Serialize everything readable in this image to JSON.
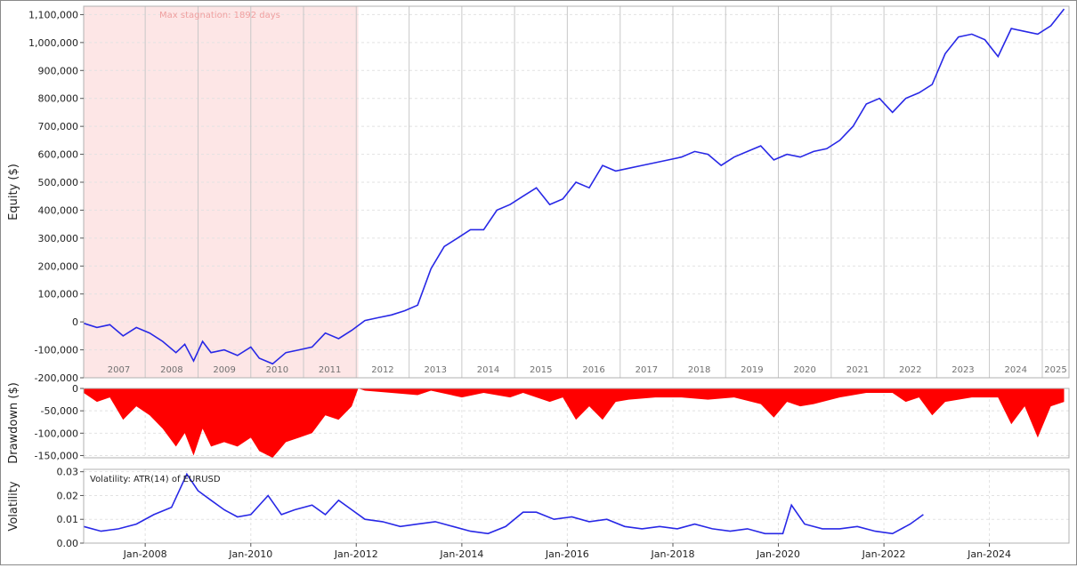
{
  "chart_data": [
    {
      "id": "equity",
      "type": "line",
      "ylabel": "Equity ($)",
      "ylim": [
        -200000,
        1130000
      ],
      "yticks": [
        -200000,
        -100000,
        0,
        100000,
        200000,
        300000,
        400000,
        500000,
        600000,
        700000,
        800000,
        900000,
        1000000,
        1100000
      ],
      "ytick_labels": [
        "-200,000",
        "-100,000",
        "0",
        "100,000",
        "200,000",
        "300,000",
        "400,000",
        "500,000",
        "600,000",
        "700,000",
        "800,000",
        "900,000",
        "1,000,000",
        "1,100,000"
      ],
      "grid": true,
      "year_labels": [
        "2007",
        "2008",
        "2009",
        "2010",
        "2011",
        "2012",
        "2013",
        "2014",
        "2015",
        "2016",
        "2017",
        "2018",
        "2019",
        "2020",
        "2021",
        "2022",
        "2023",
        "2024",
        "2025"
      ],
      "annotation": "Max stagnation: 1892 days",
      "stagnation_range": [
        "2006-11-01",
        "2012-01-15"
      ],
      "line_color": "#2828e6",
      "shade_color": "#fde6e6",
      "series": [
        {
          "x": [
            "2006-11-01",
            "2007-02-01",
            "2007-05-01",
            "2007-08-01",
            "2007-11-01",
            "2008-02-01",
            "2008-05-01",
            "2008-08-01",
            "2008-10-01",
            "2008-12-01",
            "2009-02-01",
            "2009-04-01",
            "2009-07-01",
            "2009-10-01",
            "2010-01-01",
            "2010-03-01",
            "2010-06-01",
            "2010-09-01",
            "2010-12-01",
            "2011-03-01",
            "2011-06-01",
            "2011-09-01",
            "2011-12-01",
            "2012-03-01",
            "2012-06-01",
            "2012-09-01",
            "2012-12-01",
            "2013-03-01",
            "2013-06-01",
            "2013-09-01",
            "2013-12-01",
            "2014-03-01",
            "2014-06-01",
            "2014-09-01",
            "2014-12-01",
            "2015-03-01",
            "2015-06-01",
            "2015-09-01",
            "2015-12-01",
            "2016-03-01",
            "2016-06-01",
            "2016-09-01",
            "2016-12-01",
            "2017-03-01",
            "2017-06-01",
            "2017-09-01",
            "2017-12-01",
            "2018-03-01",
            "2018-06-01",
            "2018-09-01",
            "2018-12-01",
            "2019-03-01",
            "2019-06-01",
            "2019-09-01",
            "2019-12-01",
            "2020-03-01",
            "2020-06-01",
            "2020-09-01",
            "2020-12-01",
            "2021-03-01",
            "2021-06-01",
            "2021-09-01",
            "2021-12-01",
            "2022-03-01",
            "2022-06-01",
            "2022-09-01",
            "2022-12-01",
            "2023-03-01",
            "2023-06-01",
            "2023-09-01",
            "2023-12-01",
            "2024-03-01",
            "2024-06-01",
            "2024-09-01",
            "2024-12-01",
            "2025-03-01",
            "2025-06-01"
          ],
          "y": [
            -5000,
            -20000,
            -10000,
            -50000,
            -20000,
            -40000,
            -70000,
            -110000,
            -80000,
            -140000,
            -70000,
            -110000,
            -100000,
            -120000,
            -90000,
            -130000,
            -150000,
            -110000,
            -100000,
            -90000,
            -40000,
            -60000,
            -30000,
            5000,
            15000,
            25000,
            40000,
            60000,
            190000,
            270000,
            300000,
            330000,
            330000,
            400000,
            420000,
            450000,
            480000,
            420000,
            440000,
            500000,
            480000,
            560000,
            540000,
            550000,
            560000,
            570000,
            580000,
            590000,
            610000,
            600000,
            560000,
            590000,
            610000,
            630000,
            580000,
            600000,
            590000,
            610000,
            620000,
            650000,
            700000,
            780000,
            800000,
            750000,
            800000,
            820000,
            850000,
            960000,
            1020000,
            1030000,
            1010000,
            950000,
            1050000,
            1040000,
            1030000,
            1060000,
            1120000
          ]
        }
      ]
    },
    {
      "id": "drawdown",
      "type": "area",
      "ylabel": "Drawdown ($)",
      "ylim": [
        -155000,
        0
      ],
      "yticks": [
        0,
        -50000,
        -100000,
        -150000
      ],
      "ytick_labels": [
        "0",
        "-50,000",
        "-100,000",
        "-150,000"
      ],
      "grid": true,
      "fill_color": "#ff0000",
      "series": [
        {
          "x": [
            "2006-11-01",
            "2007-02-01",
            "2007-05-01",
            "2007-08-01",
            "2007-11-01",
            "2008-02-01",
            "2008-05-01",
            "2008-08-01",
            "2008-10-01",
            "2008-12-01",
            "2009-02-01",
            "2009-04-01",
            "2009-07-01",
            "2009-10-01",
            "2010-01-01",
            "2010-03-01",
            "2010-06-01",
            "2010-09-01",
            "2010-12-01",
            "2011-03-01",
            "2011-06-01",
            "2011-09-01",
            "2011-12-01",
            "2012-01-15",
            "2012-03-01",
            "2012-09-01",
            "2013-03-01",
            "2013-06-01",
            "2014-01-01",
            "2014-06-01",
            "2014-12-01",
            "2015-03-01",
            "2015-09-01",
            "2015-12-01",
            "2016-03-01",
            "2016-06-01",
            "2016-09-01",
            "2016-12-01",
            "2017-03-01",
            "2017-09-01",
            "2018-03-01",
            "2018-09-01",
            "2019-03-01",
            "2019-09-01",
            "2019-12-01",
            "2020-03-01",
            "2020-06-01",
            "2020-09-01",
            "2021-03-01",
            "2021-09-01",
            "2022-03-01",
            "2022-06-01",
            "2022-09-01",
            "2022-12-01",
            "2023-03-01",
            "2023-09-01",
            "2024-03-01",
            "2024-06-01",
            "2024-09-01",
            "2024-12-01",
            "2025-03-01",
            "2025-06-01"
          ],
          "y": [
            -10000,
            -30000,
            -20000,
            -70000,
            -40000,
            -60000,
            -90000,
            -130000,
            -100000,
            -150000,
            -90000,
            -130000,
            -120000,
            -130000,
            -110000,
            -140000,
            -155000,
            -120000,
            -110000,
            -100000,
            -60000,
            -70000,
            -40000,
            0,
            -5000,
            -10000,
            -15000,
            -5000,
            -20000,
            -10000,
            -20000,
            -10000,
            -30000,
            -20000,
            -70000,
            -40000,
            -70000,
            -30000,
            -25000,
            -20000,
            -20000,
            -25000,
            -20000,
            -35000,
            -65000,
            -30000,
            -40000,
            -35000,
            -20000,
            -10000,
            -10000,
            -30000,
            -20000,
            -60000,
            -30000,
            -20000,
            -20000,
            -80000,
            -40000,
            -110000,
            -40000,
            -30000
          ]
        }
      ]
    },
    {
      "id": "volatility",
      "type": "line",
      "ylabel": "Volatility",
      "ylim": [
        0,
        0.031
      ],
      "yticks": [
        0.0,
        0.01,
        0.02,
        0.03
      ],
      "ytick_labels": [
        "0.00",
        "0.01",
        "0.02",
        "0.03"
      ],
      "grid": true,
      "annotation": "Volatility: ATR(14) of EURUSD",
      "line_color": "#2828e6",
      "x_tick_labels": [
        "Jan-2008",
        "Jan-2010",
        "Jan-2012",
        "Jan-2014",
        "Jan-2016",
        "Jan-2018",
        "Jan-2020",
        "Jan-2022",
        "Jan-2024"
      ],
      "series": [
        {
          "x": [
            "2006-11-01",
            "2007-03-01",
            "2007-07-01",
            "2007-11-01",
            "2008-03-01",
            "2008-07-01",
            "2008-10-15",
            "2009-01-01",
            "2009-04-01",
            "2009-07-01",
            "2009-10-01",
            "2010-01-01",
            "2010-05-01",
            "2010-08-01",
            "2010-11-01",
            "2011-03-01",
            "2011-06-01",
            "2011-09-01",
            "2011-12-01",
            "2012-03-01",
            "2012-07-01",
            "2012-11-01",
            "2013-03-01",
            "2013-07-01",
            "2013-11-01",
            "2014-03-01",
            "2014-07-01",
            "2014-11-01",
            "2015-03-01",
            "2015-06-01",
            "2015-10-01",
            "2016-02-01",
            "2016-06-01",
            "2016-10-01",
            "2017-02-01",
            "2017-06-01",
            "2017-10-01",
            "2018-02-01",
            "2018-06-01",
            "2018-10-01",
            "2019-02-01",
            "2019-06-01",
            "2019-10-01",
            "2020-02-01",
            "2020-04-01",
            "2020-07-01",
            "2020-11-01",
            "2021-03-01",
            "2021-07-01",
            "2021-11-01",
            "2022-03-01",
            "2022-07-01",
            "2022-10-01"
          ],
          "y": [
            0.007,
            0.005,
            0.006,
            0.008,
            0.012,
            0.015,
            0.029,
            0.022,
            0.018,
            0.014,
            0.011,
            0.012,
            0.02,
            0.012,
            0.014,
            0.016,
            0.012,
            0.018,
            0.014,
            0.01,
            0.009,
            0.007,
            0.008,
            0.009,
            0.007,
            0.005,
            0.004,
            0.007,
            0.013,
            0.013,
            0.01,
            0.011,
            0.009,
            0.01,
            0.007,
            0.006,
            0.007,
            0.006,
            0.008,
            0.006,
            0.005,
            0.006,
            0.004,
            0.004,
            0.016,
            0.008,
            0.006,
            0.006,
            0.007,
            0.005,
            0.004,
            0.008,
            0.012
          ]
        }
      ]
    }
  ]
}
